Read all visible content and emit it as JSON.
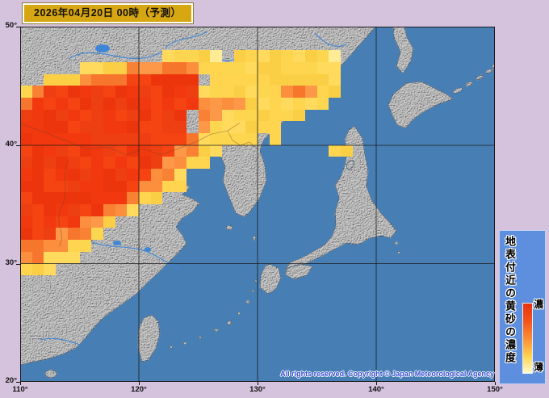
{
  "title": {
    "date_label": "2026年04月20日 00時（予測）"
  },
  "axes": {
    "lat_labels": [
      "50°",
      "40°",
      "30°",
      "20°"
    ],
    "lon_labels": [
      "110°",
      "120°",
      "130°",
      "140°",
      "150°"
    ]
  },
  "legend": {
    "title": "地表付近の黄砂の濃度",
    "high_label": "濃",
    "low_label": "薄"
  },
  "copyright": {
    "text": "All rights reserved. Copyright © Japan Meteorological Agency"
  },
  "colors": {
    "background": "#d5c2dd",
    "sea": "#477fb5",
    "land": "#d0d0d0",
    "date_box": "#d7a613",
    "legend_box": "#5e8ede",
    "copyright_text": "#2f49d2"
  },
  "chart_data": {
    "type": "heatmap",
    "title": "Surface yellow-sand (kosa) concentration forecast",
    "x_range_deg_east": [
      110,
      150
    ],
    "y_range_deg_north": [
      20,
      50
    ],
    "cell_size_deg": 1,
    "legend_scale": {
      "high": "濃",
      "low": "薄"
    },
    "levels": {
      "0": "none",
      "1": "pale-yellow",
      "2": "yellow",
      "3": "orange",
      "4": "red"
    },
    "level_colors": {
      "1": [
        "#fdeb96",
        "#fbe88e"
      ],
      "2": [
        "#ffd44e",
        "#fbcf45",
        "#ffda5c",
        "#fdd64f"
      ],
      "3": [
        "#f98134",
        "#fb8f3e",
        "#f7762d",
        "#fc9847"
      ],
      "4": [
        "#f1380f",
        "#ee3f12",
        "#f54312",
        "#ec350c"
      ]
    },
    "grid_rows_north_to_south": [
      "0000000000000000000000000000000000000000",
      "0000000000000000000000000000000000000000",
      "0000000000002222102222222210000000000000",
      "0000022223333332222222222220000000000000",
      "0022233334444440222222222220000000000000",
      "2344444444444442222222333220000000000000",
      "3444444444444443333222222200000000000000",
      "4444444444444403322222220000000000000000",
      "4444444444444403222222000000000000000000",
      "4444444444444432222202000000000000000000",
      "4444444444444332200000000022000000000000",
      "4444444444443322000000000000000000000000",
      "4444444444433200000000000000000000000000",
      "4444444444332200000000000000000000000000",
      "4444444443220000000000000000000000000000",
      "4444444332000000000000000000000000000000",
      "4444433200000000000000000000000000000000",
      "4443332000000000000000000000000000000000",
      "3333220000000000000000000000000000000000",
      "3322200000000000000000000000000000000000",
      "2220000000000000000000000000000000000000",
      "0000000000000000000000000000000000000000",
      "0000000000000000000000000000000000000000",
      "0000000000000000000000000000000000000000",
      "0000000000000000000000000000000000000000",
      "0000000000000000000000000000000000000000",
      "0000000000000000000000000000000000000000",
      "0000000000000000000000000000000000000000",
      "0000000000000000000000000000000000000000",
      "0000000000000000000000000000000000000000"
    ]
  }
}
